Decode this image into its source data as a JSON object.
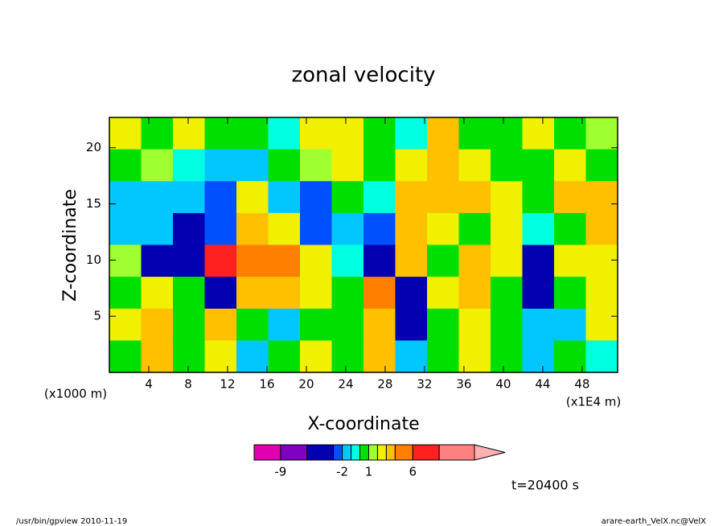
{
  "chart_data": {
    "type": "contour",
    "title": "zonal velocity",
    "xlabel": "X-coordinate",
    "ylabel": "Z-coordinate",
    "xunit": "(x1E4 m)",
    "yunit": "(x1000 m)",
    "annotation": "t=20400 s",
    "footer_left": "/usr/bin/gpview  2010-11-19",
    "footer_right": "arare-earth_VelX.nc@VelX",
    "xlim": [
      0,
      51.6
    ],
    "ylim": [
      0,
      22.7
    ],
    "xticks": [
      4,
      8,
      12,
      16,
      20,
      24,
      28,
      32,
      36,
      40,
      44,
      48
    ],
    "yticks": [
      5,
      10,
      15,
      20
    ],
    "field": [
      [
        2.5,
        0.5,
        2.5,
        0.5,
        0.5,
        -0.5,
        2.5,
        2.5,
        0.5,
        -0.5,
        3.5,
        0.5,
        0.5,
        2.5,
        0.5,
        1.5
      ],
      [
        0.5,
        1.5,
        -0.5,
        -1.5,
        -1.5,
        0.5,
        1.5,
        2.5,
        0.5,
        2.5,
        3.5,
        2.5,
        0.5,
        0.5,
        2.5,
        0.5
      ],
      [
        -1.5,
        -1.5,
        -1.5,
        -2.5,
        2.5,
        -1.5,
        -2.5,
        0.5,
        -0.5,
        3.5,
        3.5,
        3.5,
        2.5,
        0.5,
        3.5,
        3.5
      ],
      [
        -1.5,
        -1.5,
        -4,
        -2.5,
        3.5,
        2.5,
        -2.5,
        -1.5,
        -2.5,
        3.5,
        2.5,
        0.5,
        2.5,
        -0.5,
        0.5,
        3.5
      ],
      [
        1.5,
        -4,
        -4,
        7,
        5,
        5,
        2.5,
        -0.5,
        -4,
        3.5,
        0.5,
        3.5,
        2.5,
        -4,
        2.5,
        2.5
      ],
      [
        0.5,
        2.5,
        0.5,
        -4,
        3.5,
        3.5,
        2.5,
        0.5,
        5,
        -4,
        2.5,
        3.5,
        0.5,
        -4,
        0.5,
        2.5
      ],
      [
        2.5,
        3.5,
        0.5,
        3.5,
        0.5,
        -1.5,
        0.5,
        0.5,
        3.5,
        -4,
        0.5,
        2.5,
        0.5,
        -1.5,
        -1.5,
        2.5
      ],
      [
        0.5,
        3.5,
        0.5,
        2.5,
        -1.5,
        0.5,
        2.5,
        0.5,
        3.5,
        -1.5,
        0.5,
        2.5,
        0.5,
        -1.5,
        0.5,
        -0.5
      ]
    ],
    "levels": [
      -12,
      -9,
      -6,
      -3,
      -2,
      -1,
      0,
      1,
      2,
      3,
      4,
      6,
      9,
      13
    ],
    "colors": [
      "#e000b0",
      "#8000c0",
      "#0000b0",
      "#0050ff",
      "#00c8ff",
      "#00ffe0",
      "#00e000",
      "#a0ff30",
      "#f0f000",
      "#ffc000",
      "#ff8000",
      "#ff2020",
      "#ff8080"
    ],
    "extend_color": "#ffb0b0",
    "colorbar_ticks": [
      -9,
      -2,
      1,
      6
    ]
  }
}
